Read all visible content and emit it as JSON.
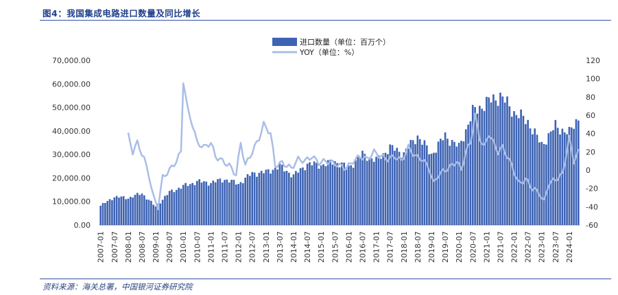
{
  "figure": {
    "title": "图4：我国集成电路进口数量及同比增长",
    "source": "资料来源：海关总署，中国银河证券研究院"
  },
  "colors": {
    "bar": "#3e63b3",
    "line": "#a9bde6",
    "rule": "#2f4f9f"
  },
  "chart_data": {
    "type": "bar",
    "x_start": "2007-01",
    "x_end": "2024-05",
    "y_left": {
      "min": 0,
      "max": 70000,
      "ticks": [
        "0.00",
        "10,000.00",
        "20,000.00",
        "30,000.00",
        "40,000.00",
        "50,000.00",
        "60,000.00",
        "70,000.00"
      ]
    },
    "y_right": {
      "min": -60,
      "max": 120,
      "ticks": [
        "-60",
        "-40",
        "-20",
        "0",
        "20",
        "40",
        "60",
        "80",
        "100",
        "120"
      ]
    },
    "x_ticks": [
      "2007-01",
      "2007-07",
      "2008-01",
      "2008-07",
      "2009-01",
      "2009-07",
      "2010-01",
      "2010-07",
      "2011-01",
      "2011-07",
      "2012-01",
      "2012-07",
      "2013-01",
      "2013-07",
      "2014-01",
      "2014-07",
      "2015-01",
      "2015-07",
      "2016-01",
      "2016-07",
      "2017-01",
      "2017-07",
      "2018-01",
      "2018-07",
      "2019-01",
      "2019-07",
      "2020-01",
      "2020-07",
      "2021-01",
      "2021-07",
      "2022-01",
      "2022-07",
      "2023-01",
      "2023-07",
      "2024-01"
    ],
    "legend_placement": "top-center",
    "series": [
      {
        "name": "进口数量（单位：百万个）",
        "type": "bar",
        "axis": "left",
        "anchors": [
          [
            "2007-01",
            8200
          ],
          [
            "2007-07",
            12000
          ],
          [
            "2008-01",
            11500
          ],
          [
            "2008-07",
            13500
          ],
          [
            "2009-01",
            7800
          ],
          [
            "2009-07",
            14000
          ],
          [
            "2010-01",
            16500
          ],
          [
            "2010-07",
            18500
          ],
          [
            "2011-01",
            18000
          ],
          [
            "2011-07",
            19500
          ],
          [
            "2012-01",
            17500
          ],
          [
            "2012-07",
            22000
          ],
          [
            "2013-01",
            22500
          ],
          [
            "2013-07",
            25000
          ],
          [
            "2014-01",
            21000
          ],
          [
            "2014-07",
            26000
          ],
          [
            "2015-01",
            25500
          ],
          [
            "2015-07",
            27000
          ],
          [
            "2016-01",
            24500
          ],
          [
            "2016-07",
            30000
          ],
          [
            "2017-01",
            27500
          ],
          [
            "2017-07",
            33000
          ],
          [
            "2018-01",
            30500
          ],
          [
            "2018-07",
            38000
          ],
          [
            "2019-01",
            30000
          ],
          [
            "2019-07",
            38000
          ],
          [
            "2020-01",
            33000
          ],
          [
            "2020-07",
            48000
          ],
          [
            "2021-01",
            52000
          ],
          [
            "2021-07",
            55000
          ],
          [
            "2022-01",
            48000
          ],
          [
            "2022-07",
            44000
          ],
          [
            "2023-01",
            34000
          ],
          [
            "2023-07",
            42000
          ],
          [
            "2024-01",
            39000
          ],
          [
            "2024-05",
            46000
          ]
        ]
      },
      {
        "name": "YOY（单位：%）",
        "type": "line",
        "axis": "right",
        "anchors": [
          [
            "2008-01",
            38
          ],
          [
            "2008-03",
            20
          ],
          [
            "2008-05",
            30
          ],
          [
            "2008-08",
            12
          ],
          [
            "2008-10",
            -5
          ],
          [
            "2008-12",
            -30
          ],
          [
            "2009-02",
            -40
          ],
          [
            "2009-04",
            -8
          ],
          [
            "2009-07",
            0
          ],
          [
            "2009-10",
            10
          ],
          [
            "2009-12",
            20
          ],
          [
            "2010-01",
            98
          ],
          [
            "2010-03",
            65
          ],
          [
            "2010-05",
            50
          ],
          [
            "2010-07",
            30
          ],
          [
            "2010-10",
            25
          ],
          [
            "2011-01",
            30
          ],
          [
            "2011-03",
            15
          ],
          [
            "2011-06",
            10
          ],
          [
            "2011-09",
            5
          ],
          [
            "2011-12",
            -5
          ],
          [
            "2012-02",
            30
          ],
          [
            "2012-04",
            5
          ],
          [
            "2012-07",
            20
          ],
          [
            "2012-10",
            35
          ],
          [
            "2012-12",
            50
          ],
          [
            "2013-03",
            40
          ],
          [
            "2013-05",
            5
          ],
          [
            "2013-08",
            8
          ],
          [
            "2013-12",
            2
          ],
          [
            "2014-03",
            12
          ],
          [
            "2014-06",
            10
          ],
          [
            "2014-09",
            15
          ],
          [
            "2014-12",
            8
          ],
          [
            "2015-03",
            10
          ],
          [
            "2015-06",
            8
          ],
          [
            "2015-09",
            5
          ],
          [
            "2015-12",
            2
          ],
          [
            "2016-03",
            10
          ],
          [
            "2016-06",
            15
          ],
          [
            "2016-09",
            12
          ],
          [
            "2016-12",
            20
          ],
          [
            "2017-03",
            15
          ],
          [
            "2017-06",
            12
          ],
          [
            "2017-09",
            15
          ],
          [
            "2017-12",
            10
          ],
          [
            "2018-03",
            25
          ],
          [
            "2018-06",
            15
          ],
          [
            "2018-09",
            12
          ],
          [
            "2018-12",
            2
          ],
          [
            "2019-02",
            -15
          ],
          [
            "2019-04",
            -5
          ],
          [
            "2019-07",
            0
          ],
          [
            "2019-10",
            5
          ],
          [
            "2019-12",
            10
          ],
          [
            "2020-02",
            0
          ],
          [
            "2020-04",
            20
          ],
          [
            "2020-06",
            30
          ],
          [
            "2020-08",
            60
          ],
          [
            "2020-10",
            35
          ],
          [
            "2020-12",
            25
          ],
          [
            "2021-02",
            40
          ],
          [
            "2021-04",
            30
          ],
          [
            "2021-06",
            20
          ],
          [
            "2021-08",
            25
          ],
          [
            "2021-10",
            15
          ],
          [
            "2021-12",
            5
          ],
          [
            "2022-03",
            -15
          ],
          [
            "2022-06",
            -10
          ],
          [
            "2022-09",
            -20
          ],
          [
            "2022-12",
            -25
          ],
          [
            "2023-02",
            -35
          ],
          [
            "2023-04",
            -15
          ],
          [
            "2023-07",
            -10
          ],
          [
            "2023-10",
            -5
          ],
          [
            "2024-01",
            35
          ],
          [
            "2024-03",
            10
          ],
          [
            "2024-05",
            20
          ]
        ]
      }
    ]
  }
}
